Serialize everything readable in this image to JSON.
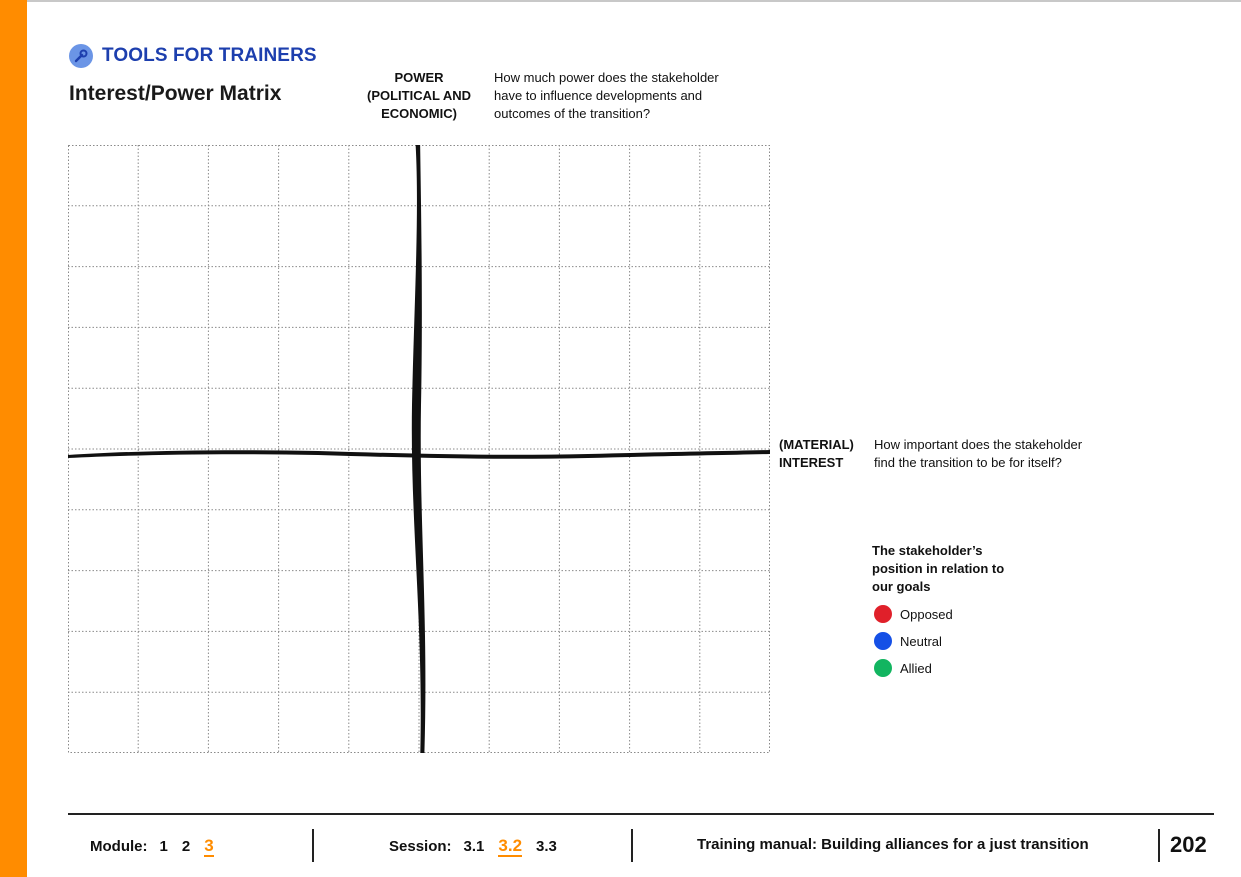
{
  "header": {
    "section_label": "TOOLS FOR TRAINERS",
    "icon": "wrench-icon",
    "title": "Interest/Power Matrix"
  },
  "axes": {
    "power_label_line1": "POWER",
    "power_label_line2": "(POLITICAL AND",
    "power_label_line3": "ECONOMIC)",
    "power_question_line1": "How much power does the stakeholder",
    "power_question_line2": "have to influence developments and",
    "power_question_line3": "outcomes of the transition?",
    "interest_label_line1": "(MATERIAL)",
    "interest_label_line2": "INTEREST",
    "interest_question_line1": "How important does the stakeholder",
    "interest_question_line2": "find the transition to be for itself?"
  },
  "legend": {
    "title_line1": "The stakeholder’s",
    "title_line2": "position in relation to",
    "title_line3": "our goals",
    "items": [
      {
        "label": "Opposed",
        "color": "#e0202a"
      },
      {
        "label": "Neutral",
        "color": "#1550e6"
      },
      {
        "label": "Allied",
        "color": "#12b560"
      }
    ]
  },
  "footer": {
    "module_label": "Module:",
    "modules": [
      "1",
      "2",
      "3"
    ],
    "active_module": "3",
    "session_label": "Session:",
    "sessions": [
      "3.1",
      "3.2",
      "3.3"
    ],
    "active_session": "3.2",
    "manual_title": "Training manual: Building alliances for a just transition",
    "page_number": "202"
  },
  "colors": {
    "accent_orange": "#FF8C00",
    "header_blue": "#1d3fae"
  }
}
